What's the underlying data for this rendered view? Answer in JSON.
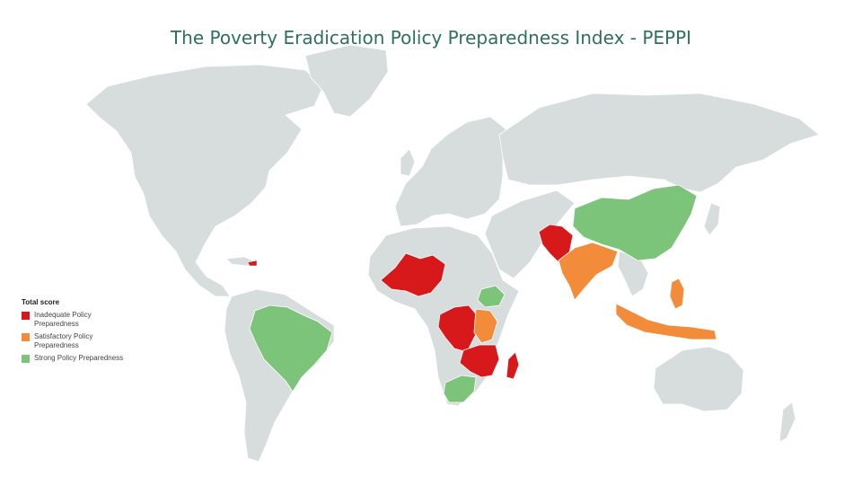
{
  "title": "The Poverty Eradication Policy Preparedness Index - PEPPI",
  "legend": {
    "title": "Total score",
    "items": [
      {
        "label": "Inadequate Policy Preparedness",
        "color": "#d7191c"
      },
      {
        "label": "Satisfactory Policy Preparedness",
        "color": "#f28c3a"
      },
      {
        "label": "Strong Policy Preparedness",
        "color": "#7cc47a"
      }
    ]
  },
  "colors": {
    "land": "#d7dcdd",
    "border": "#ffffff",
    "title": "#2f6f5e"
  },
  "regions": [
    {
      "name": "Brazil",
      "category": "Strong Policy Preparedness"
    },
    {
      "name": "China",
      "category": "Strong Policy Preparedness"
    },
    {
      "name": "Ethiopia",
      "category": "Strong Policy Preparedness"
    },
    {
      "name": "South Africa",
      "category": "Strong Policy Preparedness"
    },
    {
      "name": "India",
      "category": "Satisfactory Policy Preparedness"
    },
    {
      "name": "Indonesia",
      "category": "Satisfactory Policy Preparedness"
    },
    {
      "name": "Philippines",
      "category": "Satisfactory Policy Preparedness"
    },
    {
      "name": "Kenya",
      "category": "Satisfactory Policy Preparedness"
    },
    {
      "name": "Tanzania",
      "category": "Satisfactory Policy Preparedness"
    },
    {
      "name": "Pakistan",
      "category": "Inadequate Policy Preparedness"
    },
    {
      "name": "Afghanistan",
      "category": "Inadequate Policy Preparedness"
    },
    {
      "name": "Mali",
      "category": "Inadequate Policy Preparedness"
    },
    {
      "name": "Niger",
      "category": "Inadequate Policy Preparedness"
    },
    {
      "name": "Burkina Faso",
      "category": "Inadequate Policy Preparedness"
    },
    {
      "name": "DR Congo",
      "category": "Inadequate Policy Preparedness"
    },
    {
      "name": "Mozambique",
      "category": "Inadequate Policy Preparedness"
    },
    {
      "name": "Madagascar",
      "category": "Inadequate Policy Preparedness"
    },
    {
      "name": "Haiti",
      "category": "Inadequate Policy Preparedness"
    }
  ]
}
